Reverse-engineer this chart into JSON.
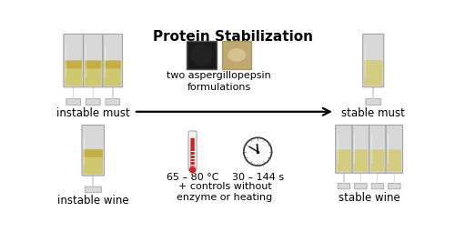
{
  "title": "Protein Stabilization",
  "title_fontsize": 11,
  "title_fontweight": "bold",
  "bg_color": "#ffffff",
  "text_color": "#000000",
  "left_top_label": "instable must",
  "left_bottom_label": "instable wine",
  "right_top_label": "stable must",
  "right_bottom_label": "stable wine",
  "center_top_label": "two aspergillopepsin\nformulations",
  "temp_label": "65 – 80 °C",
  "time_label": "30 – 144 s",
  "controls_label": "+ controls without\nenzyme or heating",
  "label_fontsize": 8.5,
  "sub_fontsize": 8,
  "liquid_col_instable": "#cfc86e",
  "liquid_col_stable": "#d4cc80",
  "glass_col": "#d8d8d8",
  "glass_edge": "#999999",
  "therm_red": "#cc2222",
  "therm_bg": "#f0f0f0",
  "clock_face": "#f8f8f8",
  "clock_edge": "#333333",
  "enzyme_dark_bg": "#1a1a1a",
  "enzyme_dark_cap": "#3a3a3a",
  "enzyme_cream_bg": "#c0a870",
  "enzyme_cream_powder": "#d4c090"
}
